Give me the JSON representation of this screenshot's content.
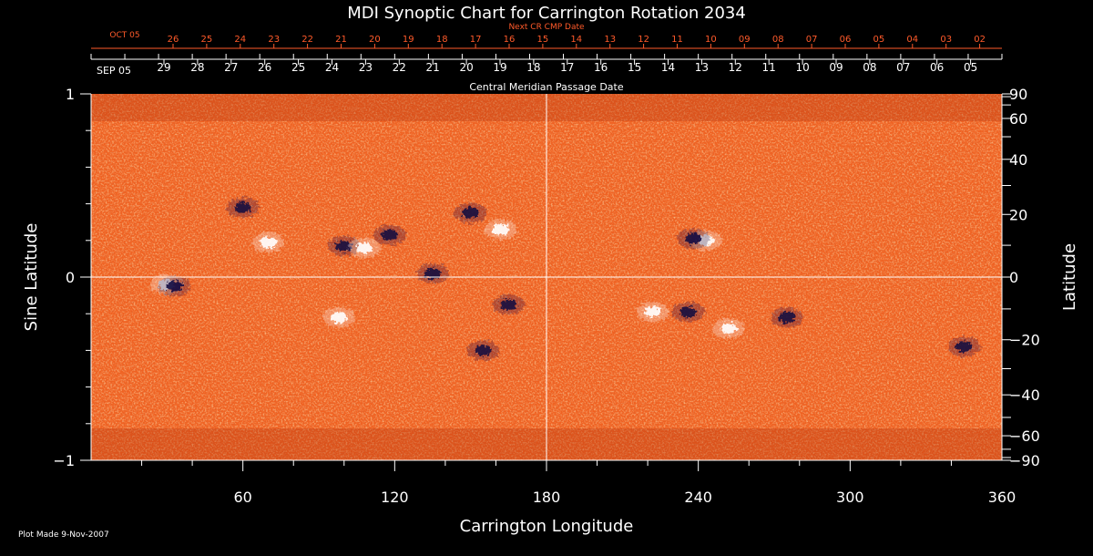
{
  "chart_data": {
    "type": "heatmap",
    "title": "MDI Synoptic Chart for Carrington Rotation 2034",
    "xlabel": "Carrington Longitude",
    "ylabel_left": "Sine Latitude",
    "ylabel_right": "Latitude",
    "xlim": [
      0,
      360
    ],
    "ylim": [
      -1,
      1
    ],
    "x_ticks": [
      60,
      120,
      180,
      240,
      300,
      360
    ],
    "y_ticks_left": [
      {
        "value": 1,
        "label": "1"
      },
      {
        "value": 0,
        "label": "0"
      },
      {
        "value": -1,
        "label": "−1"
      }
    ],
    "y_ticks_right": [
      {
        "lat": 90,
        "label": "90"
      },
      {
        "lat": 60,
        "label": "60"
      },
      {
        "lat": 40,
        "label": "40"
      },
      {
        "lat": 20,
        "label": "20"
      },
      {
        "lat": 0,
        "label": "0"
      },
      {
        "lat": -20,
        "label": "−20"
      },
      {
        "lat": -40,
        "label": "−40"
      },
      {
        "lat": -60,
        "label": "−60"
      },
      {
        "lat": -90,
        "label": "−90"
      }
    ],
    "top_axis": {
      "label": "Central Meridian Passage Date",
      "start_label": "SEP 05",
      "dates": [
        "29",
        "28",
        "27",
        "26",
        "25",
        "24",
        "23",
        "22",
        "21",
        "20",
        "19",
        "18",
        "17",
        "16",
        "15",
        "14",
        "13",
        "12",
        "11",
        "10",
        "09",
        "08",
        "07",
        "06",
        "05"
      ]
    },
    "next_axis": {
      "label": "Next CR CMP Date",
      "start_label": "OCT 05",
      "dates": [
        "26",
        "25",
        "24",
        "23",
        "22",
        "21",
        "20",
        "19",
        "18",
        "17",
        "16",
        "15",
        "14",
        "13",
        "12",
        "11",
        "10",
        "09",
        "08",
        "07",
        "06",
        "05",
        "04",
        "03",
        "02"
      ]
    },
    "reference_lines": {
      "longitude": 180,
      "sine_latitude": 0
    },
    "colors": {
      "background": "#000000",
      "axes": "#ffffff",
      "map_base": "#f06222",
      "next_axis_text": "#ff5a2a",
      "positive_polarity": "#ffffff",
      "negative_polarity": "#140a40"
    },
    "features": [
      {
        "lon": 222,
        "sinlat": -0.19,
        "polarity": "positive"
      },
      {
        "lon": 236,
        "sinlat": -0.19,
        "polarity": "negative"
      },
      {
        "lon": 100,
        "sinlat": 0.17,
        "polarity": "negative"
      },
      {
        "lon": 108,
        "sinlat": 0.16,
        "polarity": "positive"
      },
      {
        "lon": 118,
        "sinlat": 0.23,
        "polarity": "negative"
      },
      {
        "lon": 162,
        "sinlat": 0.26,
        "polarity": "positive"
      },
      {
        "lon": 150,
        "sinlat": 0.35,
        "polarity": "negative"
      },
      {
        "lon": 135,
        "sinlat": 0.02,
        "polarity": "negative"
      },
      {
        "lon": 30,
        "sinlat": -0.04,
        "polarity": "positive"
      },
      {
        "lon": 33,
        "sinlat": -0.05,
        "polarity": "negative"
      },
      {
        "lon": 70,
        "sinlat": 0.19,
        "polarity": "positive"
      },
      {
        "lon": 60,
        "sinlat": 0.38,
        "polarity": "negative"
      },
      {
        "lon": 243,
        "sinlat": 0.2,
        "polarity": "positive"
      },
      {
        "lon": 238,
        "sinlat": 0.21,
        "polarity": "negative"
      },
      {
        "lon": 252,
        "sinlat": -0.28,
        "polarity": "positive"
      },
      {
        "lon": 275,
        "sinlat": -0.22,
        "polarity": "negative"
      },
      {
        "lon": 345,
        "sinlat": -0.38,
        "polarity": "negative"
      },
      {
        "lon": 155,
        "sinlat": -0.4,
        "polarity": "negative"
      },
      {
        "lon": 98,
        "sinlat": -0.22,
        "polarity": "positive"
      },
      {
        "lon": 165,
        "sinlat": -0.15,
        "polarity": "negative"
      }
    ]
  },
  "footer": {
    "plot_made": "Plot Made  9-Nov-2007"
  }
}
